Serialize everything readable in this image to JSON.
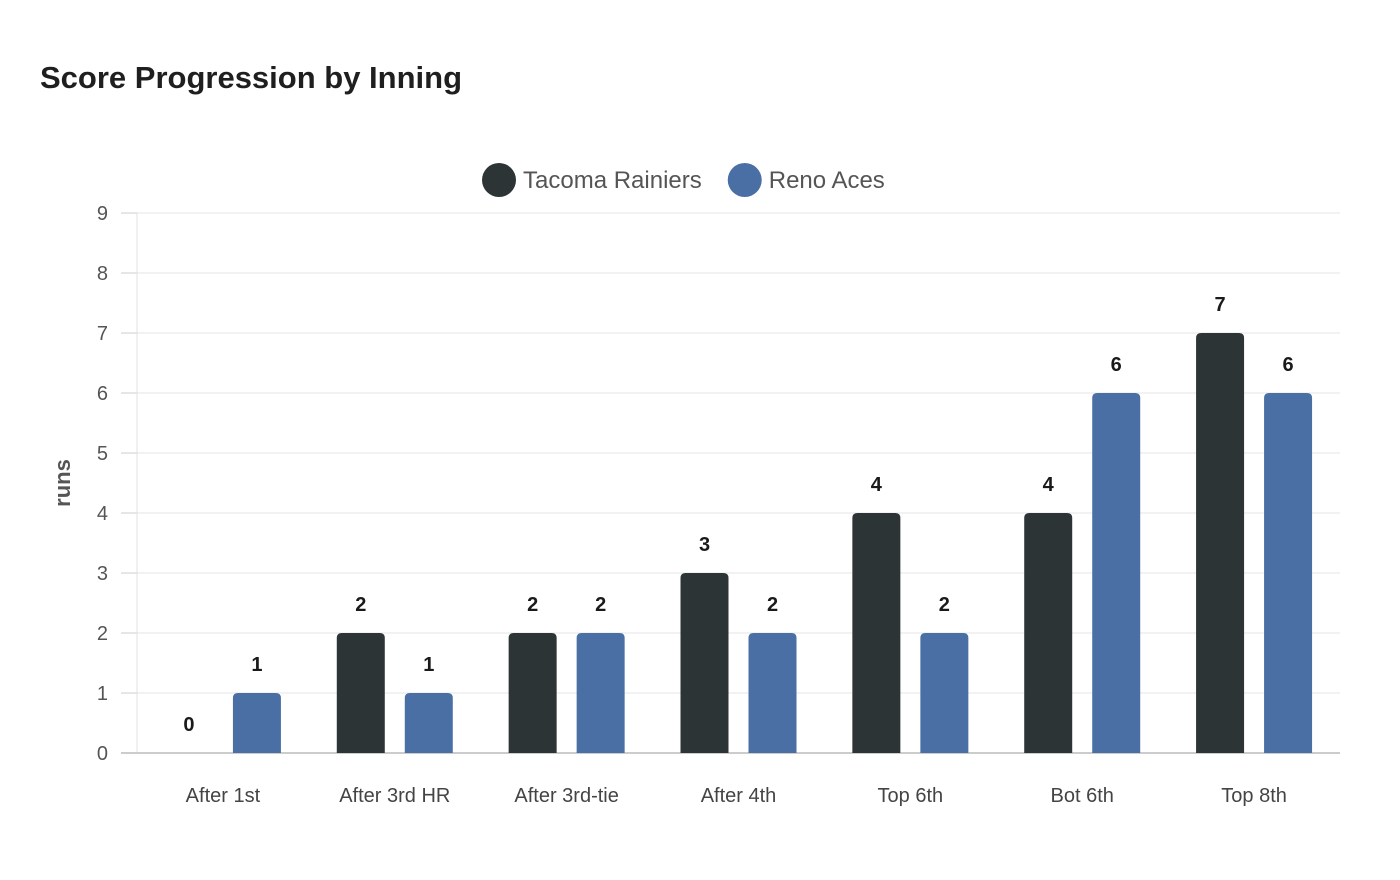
{
  "chart_data": {
    "type": "bar",
    "title": "Score Progression by Inning",
    "xlabel": "",
    "ylabel": "runs",
    "ylim": [
      0,
      9
    ],
    "yticks": [
      0,
      1,
      2,
      3,
      4,
      5,
      6,
      7,
      8,
      9
    ],
    "grid": true,
    "legend_position": "top-center",
    "categories": [
      "After 1st",
      "After 3rd HR",
      "After 3rd-tie",
      "After 4th",
      "Top 6th",
      "Bot 6th",
      "Top 8th"
    ],
    "series": [
      {
        "name": "Tacoma Rainiers",
        "color": "#2d3436",
        "values": [
          0,
          2,
          2,
          3,
          4,
          4,
          7
        ]
      },
      {
        "name": "Reno Aces",
        "color": "#4a6fa5",
        "values": [
          1,
          1,
          2,
          2,
          2,
          6,
          6
        ]
      }
    ]
  }
}
